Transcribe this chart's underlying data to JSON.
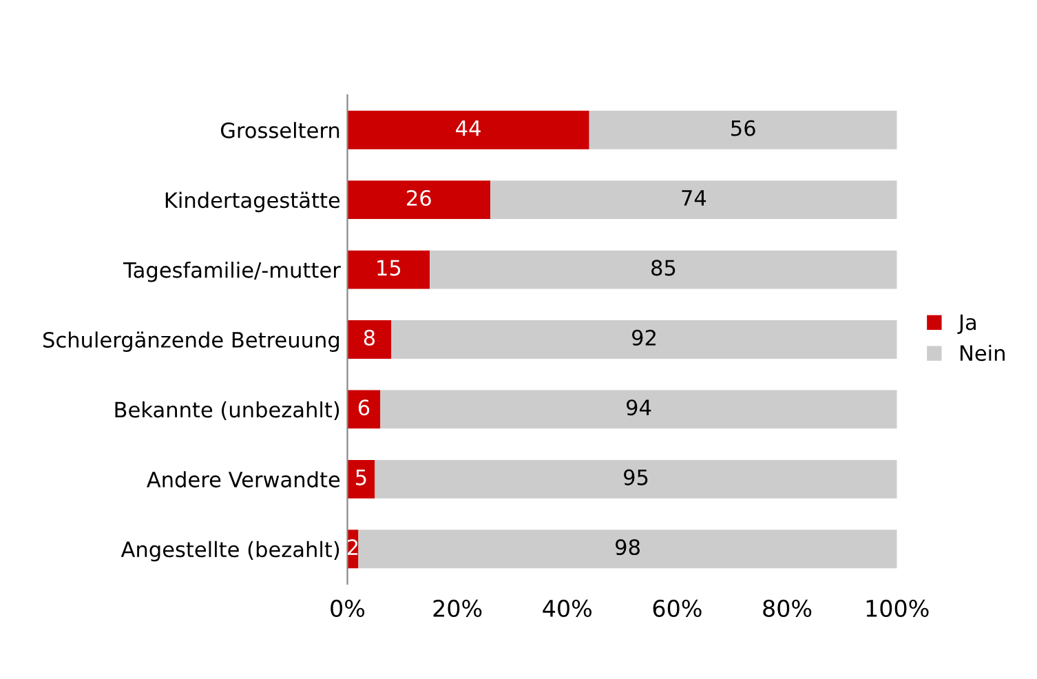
{
  "chart_data": {
    "type": "bar",
    "orientation": "horizontal",
    "stacked": true,
    "categories": [
      "Grosseltern",
      "Kindertagestätte",
      "Tagesfamilie/-mutter",
      "Schulergänzende Betreuung",
      "Bekannte (unbezahlt)",
      "Andere Verwandte",
      "Angestellte (bezahlt)"
    ],
    "series": [
      {
        "name": "Ja",
        "color": "#cc0000",
        "values": [
          44,
          26,
          15,
          8,
          6,
          5,
          2
        ]
      },
      {
        "name": "Nein",
        "color": "#cccccc",
        "values": [
          56,
          74,
          85,
          92,
          94,
          95,
          98
        ]
      }
    ],
    "xlim": [
      0,
      100
    ],
    "xticks": [
      {
        "value": 0,
        "label": "0%"
      },
      {
        "value": 20,
        "label": "20%"
      },
      {
        "value": 40,
        "label": "40%"
      },
      {
        "value": 60,
        "label": "60%"
      },
      {
        "value": 80,
        "label": "80%"
      },
      {
        "value": 100,
        "label": "100%"
      }
    ],
    "data_labels": true,
    "legend": "right",
    "grid": false
  }
}
